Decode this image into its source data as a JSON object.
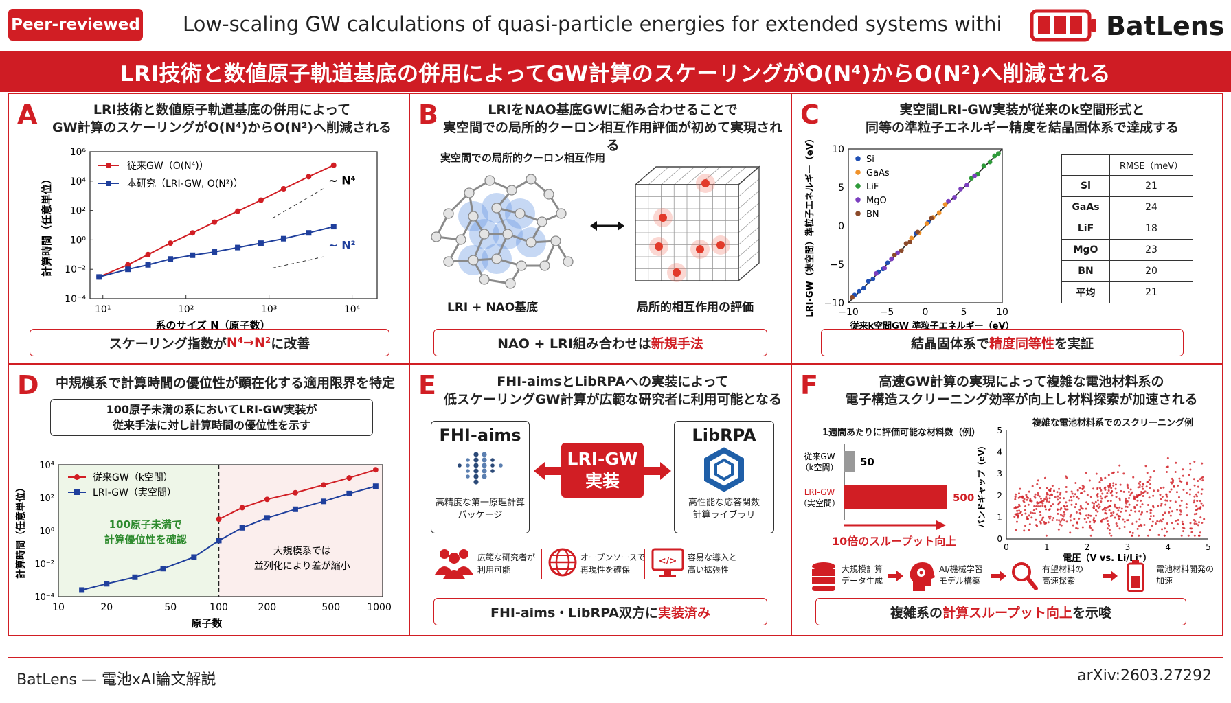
{
  "header": {
    "badge": "Peer-reviewed",
    "title": "Low-scaling GW calculations of quasi-particle energies for extended systems withi",
    "logo": "BatLens"
  },
  "banner": "LRI技術と数値原子軌道基底の併用によってGW計算のスケーリングがO(N⁴)からO(N²)へ削減される",
  "panels": {
    "A": {
      "label": "A",
      "title1": "LRI技術と数値原子軌道基底の併用によって",
      "title2": "GW計算のスケーリングがO(N⁴)からO(N²)へ削減される",
      "conclusion_pre": "スケーリング指数が ",
      "conclusion_hl": "N⁴→N²",
      "conclusion_post": " に改善"
    },
    "B": {
      "label": "B",
      "title1": "LRIをNAO基底GWに組み合わせることで",
      "title2": "実空間での局所的クーロン相互作用評価が初めて実現される",
      "sub": "実空間での局所的クーロン相互作用",
      "left_caption": "LRI + NAO基底",
      "right_caption": "局所的相互作用の評価",
      "conclusion_pre": "NAO + LRI組み合わせは ",
      "conclusion_hl": "新規手法",
      "conclusion_post": ""
    },
    "C": {
      "label": "C",
      "title1": "実空間LRI-GW実装が従来のk空間形式と",
      "title2": "同等の準粒子エネルギー精度を結晶固体系で達成する",
      "conclusion_pre": "結晶固体系で ",
      "conclusion_hl": "精度同等性",
      "conclusion_post": " を実証"
    },
    "D": {
      "label": "D",
      "title": "中規模系で計算時間の優位性が顕在化する適用限界を特定",
      "box1": "100原子未満の系においてLRI-GW実装が",
      "box2": "従来手法に対し計算時間の優位性を示す",
      "green1": "100原子未満で",
      "green2": "計算優位性を確認",
      "pink1": "大規模系では",
      "pink2": "並列化により差が縮小"
    },
    "E": {
      "label": "E",
      "title1": "FHI-aimsとLibRPAへの実装によって",
      "title2": "低スケーリングGW計算が広範な研究者に利用可能となる",
      "left_name": "FHI-aims",
      "left_desc1": "高精度な第一原理計算",
      "left_desc2": "パッケージ",
      "center1": "LRI-GW",
      "center2": "実装",
      "right_name": "LibRPA",
      "right_desc1": "高性能な応答関数",
      "right_desc2": "計算ライブラリ",
      "feat1a": "広範な研究者が",
      "feat1b": "利用可能",
      "feat2a": "オープンソースで",
      "feat2b": "再現性を確保",
      "feat3a": "容易な導入と",
      "feat3b": "高い拡張性",
      "conclusion_pre": "FHI-aims・LibRPA双方に ",
      "conclusion_hl": "実装済み",
      "conclusion_post": ""
    },
    "F": {
      "label": "F",
      "title1": "高速GW計算の実現によって複雑な電池材料系の",
      "title2": "電子構造スクリーニング効率が向上し材料探索が加速される",
      "bar_title": "1週間あたりに評価可能な材料数（例）",
      "bar1_label1": "従来GW",
      "bar1_label2": "（k空間）",
      "bar2_label1": "LRI-GW",
      "bar2_label2": "（実空間）",
      "throughput": "10倍のスループット向上",
      "scatter_title": "複雑な電池材料系でのスクリーニング例",
      "scatter_xlabel": "電圧（V vs. Li/Li⁺）",
      "scatter_ylabel": "バンドギャップ（eV）",
      "flow1a": "大規模計算",
      "flow1b": "データ生成",
      "flow2a": "AI/機械学習",
      "flow2b": "モデル構築",
      "flow3a": "有望材料の",
      "flow3b": "高速探索",
      "flow4a": "電池材料開発の",
      "flow4b": "加速",
      "conclusion_pre": "複雑系の ",
      "conclusion_hl": "計算スループット向上",
      "conclusion_post": " を示唆"
    }
  },
  "footer": {
    "left": "BatLens — 電池xAI論文解説",
    "right": "arXiv:2603.27292"
  },
  "colors": {
    "accent": "#d11e24",
    "blue": "#1f3f9c",
    "green": "#2e8b2e"
  },
  "chart_data": [
    {
      "id": "A",
      "type": "line",
      "xscale": "log",
      "yscale": "log",
      "xlabel": "系のサイズ N（原子数）",
      "ylabel": "計算時間（任意単位）",
      "xticks": [
        "10¹",
        "10²",
        "10³",
        "10⁴"
      ],
      "yticks": [
        "10⁶",
        "10⁴",
        "10²",
        "10⁰",
        "10⁻²",
        "10⁻⁴"
      ],
      "xlim": [
        7,
        20000
      ],
      "ylim": [
        0.0001,
        1000000
      ],
      "annotations": [
        "~ N⁴",
        "~ N²"
      ],
      "series": [
        {
          "name": "従来GW（O(N⁴)）",
          "color": "#d11e24",
          "marker": "circle",
          "x": [
            9,
            20,
            35,
            65,
            120,
            220,
            420,
            800,
            1500,
            3000,
            6000
          ],
          "y": [
            0.003,
            0.02,
            0.1,
            0.6,
            3,
            16,
            90,
            500,
            3000,
            20000,
            120000
          ]
        },
        {
          "name": "本研究（LRI-GW, O(N²)）",
          "color": "#1f3f9c",
          "marker": "square",
          "x": [
            9,
            20,
            35,
            65,
            120,
            220,
            420,
            800,
            1500,
            3000,
            6000
          ],
          "y": [
            0.003,
            0.01,
            0.02,
            0.05,
            0.09,
            0.15,
            0.3,
            0.6,
            1.2,
            3,
            8
          ]
        }
      ]
    },
    {
      "id": "C",
      "type": "scatter",
      "xlabel": "従来k空間GW 準粒子エネルギー（eV）",
      "ylabel": "LRI-GW（実空間）準粒子エネルギー（eV）",
      "xlim": [
        -10,
        10
      ],
      "ylim": [
        -10,
        10
      ],
      "xticks": [
        "−10",
        "−5",
        "0",
        "5",
        "10"
      ],
      "yticks": [
        "10",
        "5",
        "0",
        "−5",
        "−10"
      ],
      "series": [
        {
          "name": "Si",
          "color": "#1f4fb4",
          "x": [
            -9.2,
            -8.6,
            -8.0,
            -7.4,
            -6.8,
            -6.1,
            -5.5,
            -4.9,
            -1.2,
            0.4
          ],
          "y": [
            -9.0,
            -8.5,
            -8.1,
            -7.2,
            -6.9,
            -6.0,
            -5.6,
            -4.8,
            -1.0,
            0.5
          ]
        },
        {
          "name": "GaAs",
          "color": "#f0922a",
          "x": [
            -1.8,
            -0.8,
            0.2,
            1.0,
            1.8,
            2.6
          ],
          "y": [
            -1.6,
            -0.9,
            0.3,
            1.1,
            1.7,
            2.8
          ]
        },
        {
          "name": "LiF",
          "color": "#2e9a3a",
          "x": [
            6.0,
            6.8,
            7.6,
            8.4,
            9.0,
            9.5
          ],
          "y": [
            6.2,
            6.7,
            7.8,
            8.3,
            9.1,
            9.4
          ]
        },
        {
          "name": "MgO",
          "color": "#7b3fbf",
          "x": [
            -6.4,
            -5.3,
            -4.4,
            -3.6,
            3.0,
            3.8,
            4.6,
            5.4,
            6.4
          ],
          "y": [
            -6.2,
            -5.5,
            -4.3,
            -3.5,
            3.2,
            3.7,
            4.8,
            5.3,
            6.5
          ]
        },
        {
          "name": "BN",
          "color": "#8b4a2a",
          "x": [
            -9.5,
            -4.0,
            -3.1,
            -2.5,
            -2.0,
            -1.0,
            0.8
          ],
          "y": [
            -9.3,
            -3.8,
            -3.2,
            -2.3,
            -2.1,
            -0.8,
            1.0
          ]
        }
      ],
      "table": {
        "header": [
          "",
          "RMSE（meV）"
        ],
        "rows": [
          [
            "Si",
            "21"
          ],
          [
            "GaAs",
            "24"
          ],
          [
            "LiF",
            "18"
          ],
          [
            "MgO",
            "23"
          ],
          [
            "BN",
            "20"
          ],
          [
            "平均",
            "21"
          ]
        ]
      }
    },
    {
      "id": "D",
      "type": "line",
      "xscale": "log",
      "yscale": "log",
      "xlabel": "原子数",
      "ylabel": "計算時間（任意単位）",
      "xticks": [
        "10",
        "20",
        "50",
        "100",
        "200",
        "500",
        "1000"
      ],
      "yticks": [
        "10⁴",
        "10²",
        "10⁰",
        "10⁻²",
        "10⁻⁴"
      ],
      "xlim": [
        10,
        1050
      ],
      "ylim": [
        0.0001,
        10000
      ],
      "threshold_x": 100,
      "series": [
        {
          "name": "従来GW（k空間）",
          "color": "#d11e24",
          "marker": "circle",
          "x": [
            100,
            140,
            200,
            300,
            450,
            650,
            950
          ],
          "y": [
            5,
            25,
            80,
            200,
            600,
            1600,
            5000
          ]
        },
        {
          "name": "LRI-GW（実空間）",
          "color": "#1f3f9c",
          "marker": "square",
          "x": [
            14,
            20,
            30,
            45,
            70,
            100,
            140,
            200,
            300,
            450,
            650,
            950
          ],
          "y": [
            0.00025,
            0.0006,
            0.0015,
            0.005,
            0.025,
            0.25,
            1.5,
            6,
            20,
            60,
            180,
            500
          ]
        }
      ]
    },
    {
      "id": "F-bar",
      "type": "bar",
      "title": "1週間あたりに評価可能な材料数（例）",
      "categories": [
        "従来GW（k空間）",
        "LRI-GW（実空間）"
      ],
      "values": [
        50,
        500
      ]
    },
    {
      "id": "F-scatter",
      "type": "scatter",
      "title": "複雑な電池材料系でのスクリーニング例",
      "xlabel": "電圧（V vs. Li/Li⁺）",
      "ylabel": "バンドギャップ（eV）",
      "xlim": [
        0,
        5
      ],
      "ylim": [
        0,
        5
      ],
      "xticks": [
        "0",
        "1",
        "2",
        "3",
        "4",
        "5"
      ],
      "yticks": [
        "5",
        "4",
        "3",
        "2",
        "1",
        "0"
      ],
      "points_count": 600
    }
  ]
}
